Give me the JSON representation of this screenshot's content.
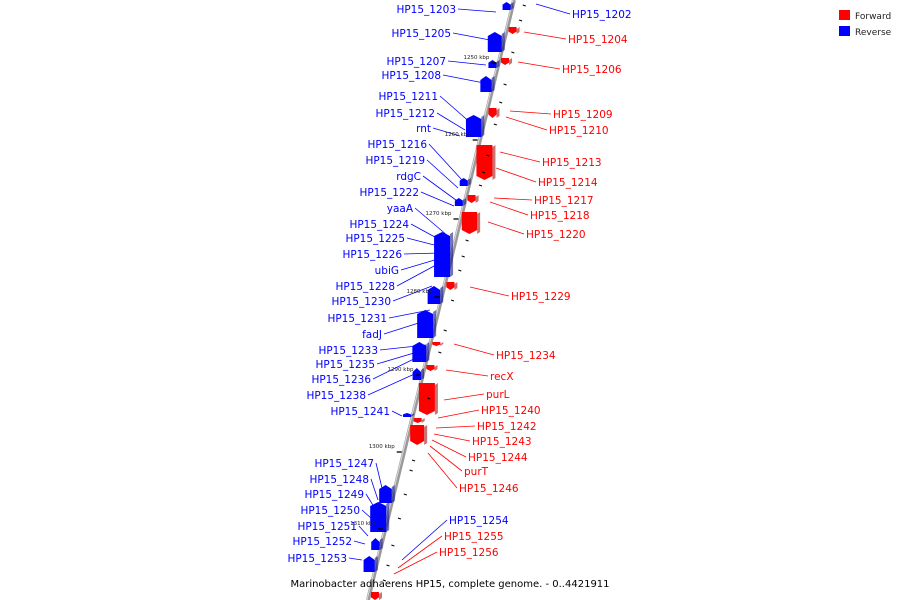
{
  "legend": {
    "forward": {
      "label": "Forward",
      "color": "#ff0000"
    },
    "reverse": {
      "label": "Reverse",
      "color": "#0000ff"
    }
  },
  "caption": "Marinobacter adhaerens HP15, complete genome. - 0..4421911",
  "colors": {
    "forward": "#ff0000",
    "reverse": "#0000ff",
    "backbone": "#888888"
  },
  "ticks": [
    "1250 kbp",
    "1260 kbp",
    "1270 kbp",
    "1280 kbp",
    "1290 kbp",
    "1300 kbp",
    "1310 kbp"
  ],
  "reverse_genes": [
    "HP15_1203",
    "HP15_1205",
    "HP15_1207",
    "HP15_1208",
    "HP15_1211",
    "HP15_1212",
    "rnt",
    "HP15_1216",
    "HP15_1219",
    "rdgC",
    "HP15_1222",
    "yaaA",
    "HP15_1224",
    "HP15_1225",
    "HP15_1226",
    "ubiG",
    "HP15_1228",
    "HP15_1230",
    "HP15_1231",
    "fadJ",
    "HP15_1233",
    "HP15_1235",
    "HP15_1236",
    "HP15_1238",
    "HP15_1241",
    "HP15_1247",
    "HP15_1248",
    "HP15_1249",
    "HP15_1250",
    "HP15_1251",
    "HP15_1252",
    "HP15_1253"
  ],
  "right_genes": [
    {
      "label": "HP15_1202",
      "strand": "reverse"
    },
    {
      "label": "HP15_1204",
      "strand": "forward"
    },
    {
      "label": "HP15_1206",
      "strand": "forward"
    },
    {
      "label": "HP15_1209",
      "strand": "forward"
    },
    {
      "label": "HP15_1210",
      "strand": "forward"
    },
    {
      "label": "HP15_1213",
      "strand": "forward"
    },
    {
      "label": "HP15_1214",
      "strand": "forward"
    },
    {
      "label": "HP15_1217",
      "strand": "forward"
    },
    {
      "label": "HP15_1218",
      "strand": "forward"
    },
    {
      "label": "HP15_1220",
      "strand": "forward"
    },
    {
      "label": "HP15_1229",
      "strand": "forward"
    },
    {
      "label": "HP15_1234",
      "strand": "forward"
    },
    {
      "label": "recX",
      "strand": "forward"
    },
    {
      "label": "purL",
      "strand": "forward"
    },
    {
      "label": "HP15_1240",
      "strand": "forward"
    },
    {
      "label": "HP15_1242",
      "strand": "forward"
    },
    {
      "label": "HP15_1243",
      "strand": "forward"
    },
    {
      "label": "HP15_1244",
      "strand": "forward"
    },
    {
      "label": "purT",
      "strand": "forward"
    },
    {
      "label": "HP15_1246",
      "strand": "forward"
    },
    {
      "label": "HP15_1254",
      "strand": "reverse"
    },
    {
      "label": "HP15_1255",
      "strand": "forward"
    },
    {
      "label": "HP15_1256",
      "strand": "forward"
    }
  ]
}
